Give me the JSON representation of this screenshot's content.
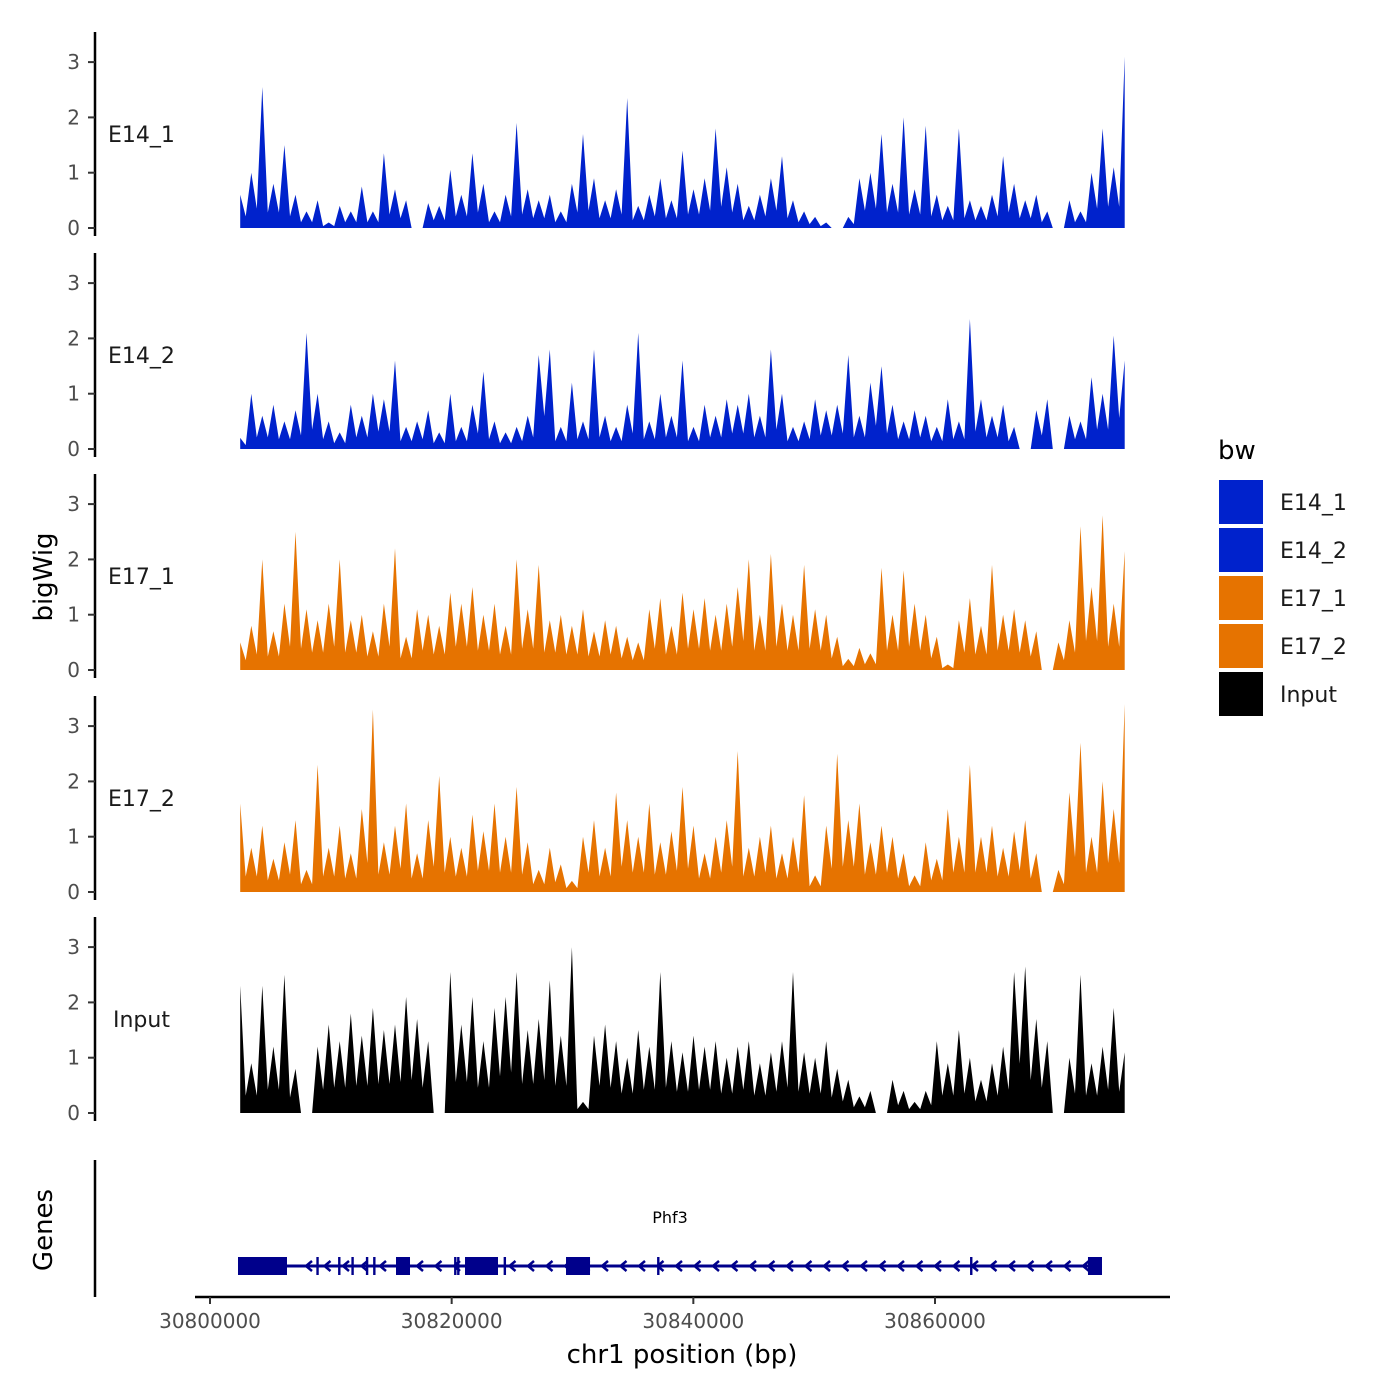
{
  "chart_data": {
    "type": "area",
    "xlabel": "chr1 position (bp)",
    "ylabel": "bigWig",
    "gene_track_label": "Genes",
    "x_ticks": [
      30800000,
      30820000,
      30840000,
      30860000
    ],
    "x_tick_labels": [
      "30800000",
      "30820000",
      "30840000",
      "30860000"
    ],
    "xlim": [
      30797500,
      30879500
    ],
    "ylim": [
      0,
      3.5
    ],
    "y_ticks": [
      0,
      1,
      2,
      3
    ],
    "y_tick_labels": [
      "0",
      "1",
      "2",
      "3"
    ],
    "x_start": 30802500,
    "x_step": 915,
    "series": [
      {
        "name": "E14_1",
        "color": "#0022CC",
        "values": [
          0.6,
          1.0,
          2.55,
          0.8,
          1.5,
          0.6,
          0.3,
          0.5,
          0.1,
          0.4,
          0.3,
          0.75,
          0.3,
          1.35,
          0.7,
          0.5,
          0,
          0.45,
          0.4,
          1.05,
          0.6,
          1.35,
          0.8,
          0.3,
          0.6,
          1.9,
          0.7,
          0.5,
          0.6,
          0.3,
          0.8,
          1.7,
          0.9,
          0.5,
          0.7,
          2.35,
          0.4,
          0.6,
          0.9,
          0.5,
          1.4,
          0.7,
          0.9,
          1.8,
          1.1,
          0.8,
          0.4,
          0.6,
          0.9,
          1.3,
          0.5,
          0.3,
          0.2,
          0.1,
          0,
          0.2,
          0.9,
          1.0,
          1.7,
          0.8,
          2.0,
          0.7,
          1.85,
          0.6,
          0.4,
          1.8,
          0.5,
          0.4,
          0.6,
          1.3,
          0.8,
          0.5,
          0.6,
          0.3,
          0,
          0.5,
          0.3,
          1.0,
          1.8,
          1.1,
          3.1
        ]
      },
      {
        "name": "E14_2",
        "color": "#0022CC",
        "values": [
          0.2,
          1.0,
          0.6,
          0.8,
          0.5,
          0.7,
          2.1,
          1.0,
          0.5,
          0.3,
          0.8,
          0.6,
          1.0,
          0.9,
          1.6,
          0.4,
          0.5,
          0.7,
          0.3,
          1.0,
          0.4,
          0.8,
          1.4,
          0.5,
          0.3,
          0.4,
          0.6,
          1.7,
          1.8,
          0.4,
          1.2,
          0.5,
          1.8,
          0.6,
          0.4,
          0.8,
          2.1,
          0.5,
          1.0,
          0.6,
          1.6,
          0.4,
          0.8,
          0.6,
          0.9,
          0.8,
          1.0,
          0.6,
          1.8,
          1.0,
          0.4,
          0.5,
          0.9,
          0.7,
          0.8,
          1.7,
          0.6,
          1.2,
          1.5,
          0.8,
          0.5,
          0.7,
          0.6,
          0.4,
          0.9,
          0.5,
          2.35,
          0.9,
          0.6,
          0.8,
          0.4,
          0,
          0.7,
          0.9,
          0,
          0.6,
          0.5,
          1.3,
          1.0,
          2.05,
          1.6
        ]
      },
      {
        "name": "E17_1",
        "color": "#E67300",
        "values": [
          0.5,
          0.8,
          2.0,
          0.7,
          1.2,
          2.5,
          1.1,
          0.9,
          1.2,
          2.0,
          0.9,
          1.0,
          0.7,
          1.2,
          2.2,
          0.6,
          1.1,
          1.0,
          0.8,
          1.4,
          1.2,
          1.5,
          1.0,
          1.2,
          0.8,
          2.0,
          1.1,
          1.9,
          0.9,
          1.0,
          0.8,
          1.1,
          0.7,
          0.9,
          0.8,
          0.6,
          0.5,
          1.1,
          1.3,
          0.8,
          1.4,
          1.1,
          1.3,
          1.0,
          1.2,
          1.5,
          2.0,
          1.0,
          2.1,
          1.2,
          1.0,
          1.9,
          1.1,
          1.0,
          0.6,
          0.2,
          0.4,
          0.3,
          1.85,
          1.0,
          1.8,
          1.2,
          1.0,
          0.6,
          0.1,
          0.9,
          1.3,
          0.8,
          1.9,
          1.0,
          1.1,
          0.9,
          0.7,
          0,
          0.5,
          0.9,
          2.6,
          1.5,
          2.8,
          1.2,
          2.15
        ]
      },
      {
        "name": "E17_2",
        "color": "#E67300",
        "values": [
          1.6,
          0.8,
          1.2,
          0.6,
          0.9,
          1.3,
          0.4,
          2.3,
          0.8,
          1.2,
          0.7,
          1.5,
          3.3,
          0.9,
          1.2,
          1.6,
          0.7,
          1.3,
          2.1,
          1.0,
          0.8,
          1.4,
          1.1,
          1.6,
          1.0,
          1.9,
          0.9,
          0.4,
          0.8,
          0.5,
          0.2,
          1.0,
          1.3,
          0.8,
          1.8,
          1.3,
          1.0,
          1.6,
          0.9,
          1.1,
          1.9,
          1.2,
          0.7,
          1.0,
          1.3,
          2.55,
          0.8,
          1.0,
          1.2,
          0.7,
          1.0,
          1.75,
          0.3,
          1.2,
          2.5,
          1.3,
          1.6,
          0.9,
          1.2,
          1.0,
          0.7,
          0.3,
          0.9,
          0.6,
          1.5,
          1.0,
          2.3,
          1.0,
          1.2,
          0.8,
          1.1,
          1.3,
          0.7,
          0,
          0.4,
          1.8,
          2.7,
          1.0,
          2.0,
          1.5,
          3.4
        ]
      },
      {
        "name": "Input",
        "color": "#000000",
        "values": [
          2.3,
          0.9,
          2.3,
          1.2,
          2.5,
          0.8,
          0,
          1.2,
          1.6,
          1.3,
          1.8,
          1.4,
          1.9,
          1.5,
          1.6,
          2.1,
          1.7,
          1.3,
          0,
          2.55,
          1.6,
          2.1,
          1.3,
          1.9,
          2.1,
          2.55,
          1.5,
          1.7,
          2.4,
          1.4,
          3.0,
          0.2,
          1.4,
          1.6,
          1.3,
          1.0,
          1.5,
          1.2,
          2.55,
          1.3,
          1.1,
          1.4,
          1.2,
          1.3,
          1.0,
          1.2,
          1.3,
          0.9,
          1.1,
          1.3,
          2.55,
          1.1,
          1.0,
          1.3,
          0.8,
          0.6,
          0.3,
          0.4,
          0,
          0.6,
          0.4,
          0.2,
          0.4,
          1.3,
          0.9,
          1.5,
          1.0,
          0.6,
          0.9,
          1.2,
          2.55,
          2.65,
          1.7,
          1.3,
          0,
          1.0,
          2.5,
          0.9,
          1.2,
          1.9,
          1.1
        ]
      }
    ],
    "legend": {
      "title": "bw",
      "position": "right",
      "entries": [
        "E14_1",
        "E14_2",
        "E17_1",
        "E17_2",
        "Input"
      ]
    },
    "gene": {
      "name": "Phf3",
      "strand": "-",
      "color": "#00008B",
      "start": 30802317,
      "end": 30873820,
      "exons": [
        [
          30802317,
          30806372
        ],
        [
          30815393,
          30816552
        ],
        [
          30821104,
          30823835
        ],
        [
          30829463,
          30831450
        ],
        [
          30872660,
          30873820
        ]
      ],
      "small_exons": [
        30808900,
        30810700,
        30811800,
        30813000,
        30813600,
        30820300,
        30820550,
        30824400,
        30837100,
        30863000
      ]
    }
  }
}
